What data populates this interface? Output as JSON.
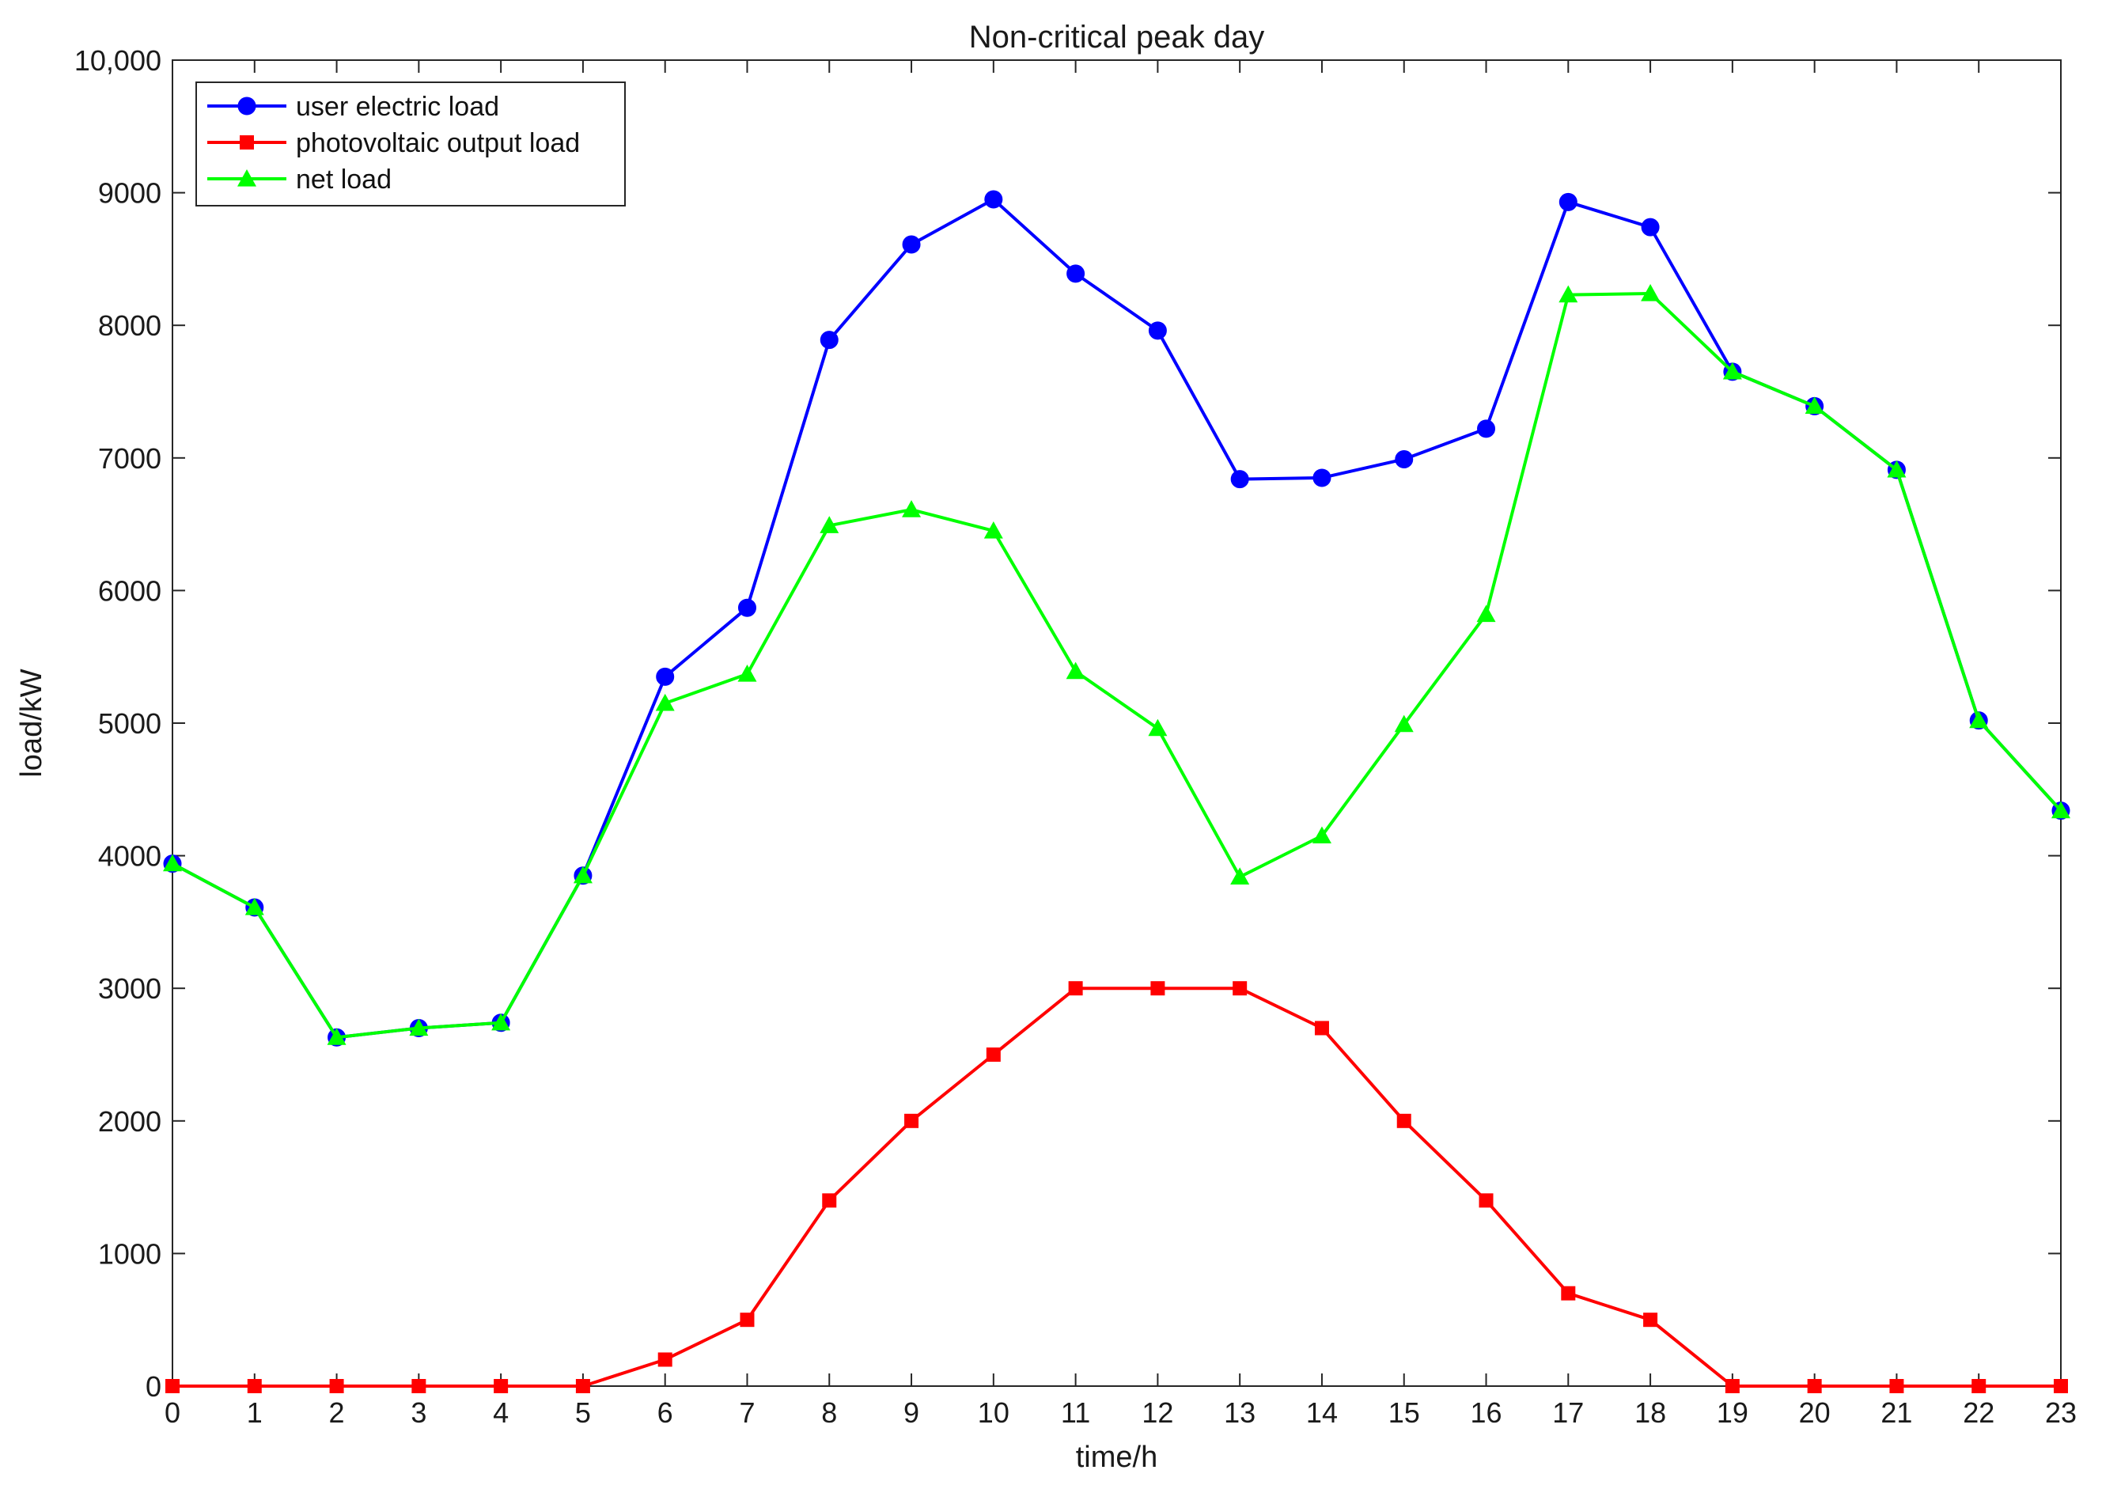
{
  "chart_data": {
    "type": "line",
    "title": "Non-critical peak day",
    "xlabel": "time/h",
    "ylabel": "load/kW",
    "xlim": [
      0,
      23
    ],
    "ylim": [
      0,
      10000
    ],
    "x": [
      0,
      1,
      2,
      3,
      4,
      5,
      6,
      7,
      8,
      9,
      10,
      11,
      12,
      13,
      14,
      15,
      16,
      17,
      18,
      19,
      20,
      21,
      22,
      23
    ],
    "x_ticks": [
      "0",
      "1",
      "2",
      "3",
      "4",
      "5",
      "6",
      "7",
      "8",
      "9",
      "10",
      "11",
      "12",
      "13",
      "14",
      "15",
      "16",
      "17",
      "18",
      "19",
      "20",
      "21",
      "22",
      "23"
    ],
    "y_ticks": [
      {
        "value": 0,
        "label": "0"
      },
      {
        "value": 1000,
        "label": "1000"
      },
      {
        "value": 2000,
        "label": "2000"
      },
      {
        "value": 3000,
        "label": "3000"
      },
      {
        "value": 4000,
        "label": "4000"
      },
      {
        "value": 5000,
        "label": "5000"
      },
      {
        "value": 6000,
        "label": "6000"
      },
      {
        "value": 7000,
        "label": "7000"
      },
      {
        "value": 8000,
        "label": "8000"
      },
      {
        "value": 9000,
        "label": "9000"
      },
      {
        "value": 10000,
        "label": "10,000"
      }
    ],
    "grid": false,
    "legend_position": "top-left",
    "series": [
      {
        "name": "user electric load",
        "color": "#0000ff",
        "marker": "circle",
        "values": [
          3940,
          3610,
          2630,
          2700,
          2740,
          3850,
          5350,
          5870,
          7890,
          8610,
          8950,
          8390,
          7960,
          6840,
          6850,
          6990,
          7220,
          8930,
          8740,
          7650,
          7390,
          6910,
          5020,
          4340
        ]
      },
      {
        "name": "photovoltaic output load",
        "color": "#ff0000",
        "marker": "square",
        "values": [
          0,
          0,
          0,
          0,
          0,
          0,
          200,
          500,
          1400,
          2000,
          2500,
          3000,
          3000,
          3000,
          2700,
          2000,
          1400,
          700,
          500,
          0,
          0,
          0,
          0,
          0
        ]
      },
      {
        "name": "net load",
        "color": "#00ff00",
        "marker": "triangle",
        "values": [
          3940,
          3610,
          2630,
          2700,
          2740,
          3850,
          5150,
          5370,
          6490,
          6610,
          6450,
          5390,
          4960,
          3840,
          4150,
          4990,
          5820,
          8230,
          8240,
          7650,
          7390,
          6910,
          5020,
          4340
        ]
      }
    ]
  }
}
